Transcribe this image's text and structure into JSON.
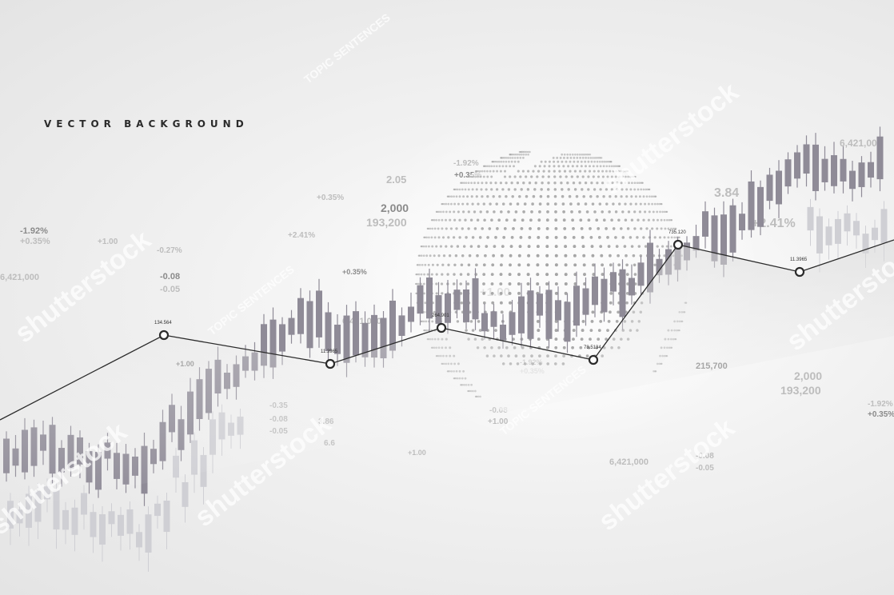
{
  "headline": "VECTOR BACKGROUND",
  "colors": {
    "background": "#efefef",
    "candle": "#8f8b97",
    "candle_light": "#cfcfd4",
    "line": "#2b2b2b",
    "text_faint": "#bdbdbd",
    "text_mid": "#8a8a8a",
    "globe_dots": "#9a9a9a"
  },
  "trend_points": [
    {
      "label": ""
    },
    {
      "label": "134.564"
    },
    {
      "label": "11.3965"
    },
    {
      "label": "264.901"
    },
    {
      "label": "78.5134"
    },
    {
      "label": "735.120"
    },
    {
      "label": "11.3965"
    },
    {
      "label": ""
    }
  ],
  "faint_labels": [
    "-1.92%",
    "+0.35%",
    "+1.00",
    "6,421,000",
    "-0.08",
    "-0.05",
    "-0.27%",
    "2.05",
    "2,000",
    "193,200",
    "+0.35%",
    "+2.41%",
    "+0.35%",
    "+1.00",
    "6,421,000",
    "-1.92%",
    "+0.35%",
    "3.84",
    "+2.41%",
    "6,421,000",
    "215,700",
    "2,000",
    "193,200",
    "-1.92%",
    "+0.35%",
    "6,421,000",
    "-0.08",
    "-0.05",
    "+1.00",
    "-0.08",
    "-0.05",
    "+1.00",
    "-1.92%",
    "+0.35%",
    "-0.08",
    "+1.00",
    "2,000",
    "-0.35",
    "3.86",
    "6.6"
  ],
  "watermarks": [
    "shutterstock",
    "shutterstock",
    "shutterstock",
    "shutterstock",
    "shutterstock",
    "shutterstock",
    "TOPIC SENTENCES",
    "TOPIC SENTENCES",
    "TOPIC SENTENCES"
  ]
}
